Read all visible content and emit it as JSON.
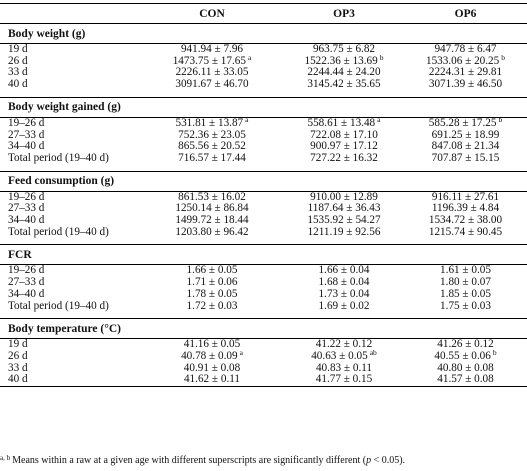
{
  "header": {
    "col0": "",
    "col1": "CON",
    "col2": "OP3",
    "col3": "OP6"
  },
  "sections": [
    {
      "title": "Body weight (g)",
      "rows": [
        {
          "label": "19 d",
          "cells": [
            {
              "v": "941.94 ± 7.96",
              "s": ""
            },
            {
              "v": "963.75 ± 6.82",
              "s": ""
            },
            {
              "v": "947.78 ± 6.47",
              "s": ""
            }
          ]
        },
        {
          "label": "26 d",
          "cells": [
            {
              "v": "1473.75 ± 17.65",
              "s": "a"
            },
            {
              "v": "1522.36 ± 13.69",
              "s": "b"
            },
            {
              "v": "1533.06 ± 20.25",
              "s": "b"
            }
          ]
        },
        {
          "label": "33 d",
          "cells": [
            {
              "v": "2226.11 ± 33.05",
              "s": ""
            },
            {
              "v": "2244.44 ± 24.20",
              "s": ""
            },
            {
              "v": "2224.31 ± 29.81",
              "s": ""
            }
          ]
        },
        {
          "label": "40 d",
          "cells": [
            {
              "v": "3091.67 ± 46.70",
              "s": ""
            },
            {
              "v": "3145.42 ± 35.65",
              "s": ""
            },
            {
              "v": "3071.39 ± 46.50",
              "s": ""
            }
          ]
        }
      ]
    },
    {
      "title": "Body weight gained (g)",
      "rows": [
        {
          "label": "19–26 d",
          "cells": [
            {
              "v": "531.81 ± 13.87",
              "s": "a"
            },
            {
              "v": "558.61 ± 13.48",
              "s": "a"
            },
            {
              "v": "585.28 ± 17.25",
              "s": "b"
            }
          ]
        },
        {
          "label": "27–33 d",
          "cells": [
            {
              "v": "752.36 ± 23.05",
              "s": ""
            },
            {
              "v": "722.08 ± 17.10",
              "s": ""
            },
            {
              "v": "691.25 ± 18.99",
              "s": ""
            }
          ]
        },
        {
          "label": "34–40 d",
          "cells": [
            {
              "v": "865.56 ± 20.52",
              "s": ""
            },
            {
              "v": "900.97 ± 17.12",
              "s": ""
            },
            {
              "v": "847.08 ± 21.34",
              "s": ""
            }
          ]
        },
        {
          "label": "Total period (19–40 d)",
          "cells": [
            {
              "v": "716.57 ± 17.44",
              "s": ""
            },
            {
              "v": "727.22 ± 16.32",
              "s": ""
            },
            {
              "v": "707.87 ± 15.15",
              "s": ""
            }
          ]
        }
      ]
    },
    {
      "title": "Feed consumption (g)",
      "rows": [
        {
          "label": "19–26 d",
          "cells": [
            {
              "v": "861.53 ± 16.02",
              "s": ""
            },
            {
              "v": "910.00 ± 12.89",
              "s": ""
            },
            {
              "v": "916.11 ± 27.61",
              "s": ""
            }
          ]
        },
        {
          "label": "27–33 d",
          "cells": [
            {
              "v": "1250.14 ± 86.84",
              "s": ""
            },
            {
              "v": "1187.64 ± 36.43",
              "s": ""
            },
            {
              "v": "1196.39 ± 4.84",
              "s": ""
            }
          ]
        },
        {
          "label": "34–40 d",
          "cells": [
            {
              "v": "1499.72 ± 18.44",
              "s": ""
            },
            {
              "v": "1535.92 ± 54.27",
              "s": ""
            },
            {
              "v": "1534.72 ± 38.00",
              "s": ""
            }
          ]
        },
        {
          "label": "Total period (19–40 d)",
          "cells": [
            {
              "v": "1203.80 ± 96.42",
              "s": ""
            },
            {
              "v": "1211.19 ± 92.56",
              "s": ""
            },
            {
              "v": "1215.74 ± 90.45",
              "s": ""
            }
          ]
        }
      ]
    },
    {
      "title": "FCR",
      "rows": [
        {
          "label": "19–26 d",
          "cells": [
            {
              "v": "1.66 ± 0.05",
              "s": ""
            },
            {
              "v": "1.66 ± 0.04",
              "s": ""
            },
            {
              "v": "1.61 ± 0.05",
              "s": ""
            }
          ]
        },
        {
          "label": "27–33 d",
          "cells": [
            {
              "v": "1.71 ± 0.06",
              "s": ""
            },
            {
              "v": "1.68 ± 0.04",
              "s": ""
            },
            {
              "v": "1.80 ± 0.07",
              "s": ""
            }
          ]
        },
        {
          "label": "34–40 d",
          "cells": [
            {
              "v": "1.78 ± 0.05",
              "s": ""
            },
            {
              "v": "1.73 ± 0.04",
              "s": ""
            },
            {
              "v": "1.85 ± 0.05",
              "s": ""
            }
          ]
        },
        {
          "label": "Total period (19–40 d)",
          "cells": [
            {
              "v": "1.72 ± 0.03",
              "s": ""
            },
            {
              "v": "1.69 ± 0.02",
              "s": ""
            },
            {
              "v": "1.75 ± 0.03",
              "s": ""
            }
          ]
        }
      ]
    },
    {
      "title": "Body temperature (°C)",
      "rows": [
        {
          "label": "19 d",
          "cells": [
            {
              "v": "41.16 ± 0.05",
              "s": ""
            },
            {
              "v": "41.22 ± 0.12",
              "s": ""
            },
            {
              "v": "41.26 ± 0.12",
              "s": ""
            }
          ]
        },
        {
          "label": "26 d",
          "cells": [
            {
              "v": "40.78 ± 0.09",
              "s": "a"
            },
            {
              "v": "40.63 ± 0.05",
              "s": "ab"
            },
            {
              "v": "40.55 ± 0.06",
              "s": "b"
            }
          ]
        },
        {
          "label": "33 d",
          "cells": [
            {
              "v": "40.91 ± 0.08",
              "s": ""
            },
            {
              "v": "40.83 ± 0.11",
              "s": ""
            },
            {
              "v": "40.80 ± 0.08",
              "s": ""
            }
          ]
        },
        {
          "label": "40 d",
          "cells": [
            {
              "v": "41.62 ± 0.11",
              "s": ""
            },
            {
              "v": "41.77 ± 0.15",
              "s": ""
            },
            {
              "v": "41.57 ± 0.08",
              "s": ""
            }
          ]
        }
      ]
    }
  ],
  "footnote": {
    "marks": "a, b",
    "text_before": "Means within a raw at a given age with different superscripts are significantly different (",
    "p_symbol": "p",
    "text_after": " < 0.05)."
  }
}
